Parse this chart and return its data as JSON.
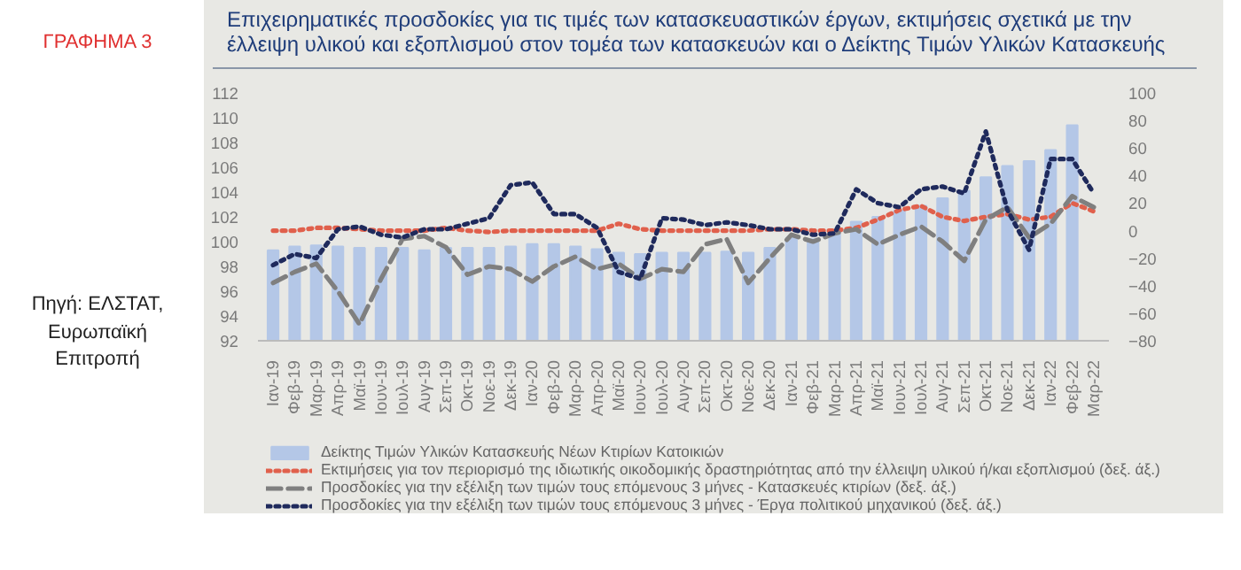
{
  "chart_data": {
    "type": "bar",
    "title": "Επιχειρηματικές προσδοκίες για τις τιμές των κατασκευαστικών έργων, εκτιμήσεις  σχετικά με την έλλειψη υλικού και εξοπλισμού στον τομέα των κατασκευών και ο Δείκτης Τιμών Υλικών Κατασκευής",
    "annotations": [
      "ΓΡΑΦΗΜΑ 3",
      "Πηγή: ΕΛΣΤΑΤ, Ευρωπαϊκή Επιτροπή"
    ],
    "categories": [
      "Ιαν-19",
      "Φεβ-19",
      "Μαρ-19",
      "Απρ-19",
      "Μαϊ-19",
      "Ιουν-19",
      "Ιουλ-19",
      "Αυγ-19",
      "Σεπ-19",
      "Οκτ-19",
      "Νοε-19",
      "Δεκ-19",
      "Ιαν-20",
      "Φεβ-20",
      "Μαρ-20",
      "Απρ-20",
      "Μαϊ-20",
      "Ιουν-20",
      "Ιουλ-20",
      "Αυγ-20",
      "Σεπ-20",
      "Οκτ-20",
      "Νοε-20",
      "Δεκ-20",
      "Ιαν-21",
      "Φεβ-21",
      "Μαρ-21",
      "Απρ-21",
      "Μαϊ-21",
      "Ιουν-21",
      "Ιουλ-21",
      "Αυγ-21",
      "Σεπ-21",
      "Οκτ-21",
      "Νοε-21",
      "Δεκ-21",
      "Ιαν-22",
      "Φεβ-22",
      "Μαρ-22"
    ],
    "series": [
      {
        "name": "Δείκτης Τιμών Υλικών Κατασκευής Νέων Κτιρίων Κατοικιών",
        "color": "#b4c7e7",
        "values": [
          99.3,
          99.6,
          99.7,
          99.6,
          99.5,
          99.5,
          99.5,
          99.3,
          99.5,
          99.5,
          99.5,
          99.6,
          99.8,
          99.8,
          99.6,
          99.4,
          99.1,
          99.0,
          99.1,
          99.1,
          99.1,
          99.2,
          99.1,
          99.5,
          100.3,
          100.2,
          100.9,
          101.6,
          102.0,
          102.5,
          102.9,
          103.5,
          104.1,
          105.2,
          106.1,
          106.5,
          107.4,
          109.4,
          null
        ]
      },
      {
        "name": "Εκτιμήσεις για τον περιορισμό της ιδιωτικής οικοδομικής δραστηριότητας από την έλλειψη υλικού ή/και εξοπλισμού (δεξ. άξ.)",
        "type": "line",
        "axis": "y2",
        "line_style": "dotted",
        "color": "#e0604c",
        "values": [
          0,
          0,
          2,
          2,
          1,
          0,
          0,
          0,
          2,
          0,
          -1,
          0,
          0,
          0,
          0,
          0,
          5,
          1,
          0,
          0,
          0,
          0,
          0,
          1,
          1,
          0,
          0,
          2,
          8,
          15,
          18,
          10,
          7,
          10,
          12,
          8,
          10,
          20,
          14
        ]
      },
      {
        "name": "Προσδοκίες για την εξέλιξη των τιμών τους επόμενους 3 μήνες - Κατασκευές κτιρίων (δεξ. άξ.)",
        "type": "line",
        "axis": "y2",
        "line_style": "dashed",
        "color": "#7f7f7f",
        "values": [
          -38,
          -30,
          -24,
          -44,
          -68,
          -35,
          -6,
          -4,
          -12,
          -32,
          -26,
          -28,
          -37,
          -26,
          -19,
          -28,
          -24,
          -35,
          -28,
          -30,
          -10,
          -6,
          -38,
          -20,
          -3,
          -8,
          -2,
          1,
          -10,
          -3,
          3,
          -8,
          -22,
          8,
          17,
          -5,
          5,
          25,
          17
        ]
      },
      {
        "name": "Προσδοκίες για την εξέλιξη των τιμών τους επόμενους 3 μήνες - Έργα πολιτικού μηχανικού (δεξ. άξ.)",
        "type": "line",
        "axis": "y2",
        "line_style": "dotted",
        "color": "#1f2a5c",
        "values": [
          -25,
          -17,
          -20,
          1,
          3,
          -3,
          -5,
          1,
          1,
          5,
          9,
          33,
          35,
          12,
          12,
          2,
          -30,
          -35,
          9,
          8,
          4,
          6,
          4,
          1,
          1,
          -3,
          -2,
          30,
          20,
          17,
          30,
          32,
          27,
          72,
          15,
          -14,
          52,
          52,
          27
        ]
      }
    ],
    "ylim": [
      92,
      112
    ],
    "yticks": [
      92,
      94,
      96,
      98,
      100,
      102,
      104,
      106,
      108,
      110,
      112
    ],
    "y2lim": [
      -80,
      100
    ],
    "y2ticks": [
      -80,
      -60,
      -40,
      -20,
      0,
      20,
      40,
      60,
      80,
      100
    ],
    "grid": false,
    "legend": "bottom"
  }
}
